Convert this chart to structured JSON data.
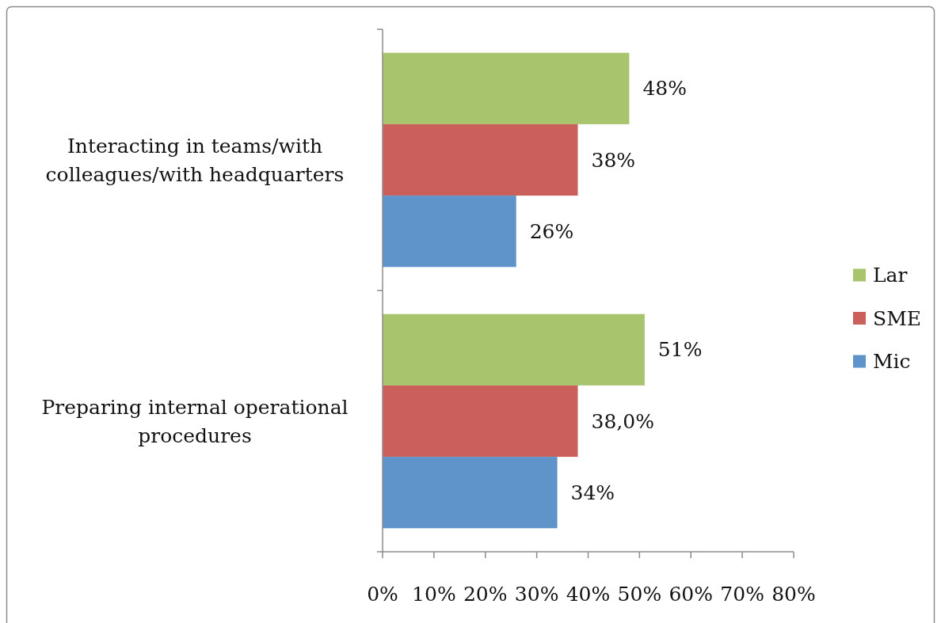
{
  "chart_data": {
    "type": "bar",
    "orientation": "horizontal",
    "categories": [
      "Interacting in teams/with colleagues/with headquarters",
      "Preparing internal operational procedures"
    ],
    "series": [
      {
        "name": "Lar",
        "color": "#a8c46c",
        "values": [
          48,
          51
        ],
        "value_labels": [
          "48%",
          "51%"
        ]
      },
      {
        "name": "SME",
        "color": "#cb5f5b",
        "values": [
          38,
          38
        ],
        "value_labels": [
          "38%",
          "38,0%"
        ]
      },
      {
        "name": "Mic",
        "color": "#5e94c9",
        "values": [
          26,
          34
        ],
        "value_labels": [
          "26%",
          "34%"
        ]
      }
    ],
    "xlim": [
      0,
      80
    ],
    "xticks": [
      {
        "value": 0,
        "label": "0%"
      },
      {
        "value": 10,
        "label": "10%"
      },
      {
        "value": 20,
        "label": "20%"
      },
      {
        "value": 30,
        "label": "30%"
      },
      {
        "value": 40,
        "label": "40%"
      },
      {
        "value": 50,
        "label": "50%"
      },
      {
        "value": 60,
        "label": "60%"
      },
      {
        "value": 70,
        "label": "70%"
      },
      {
        "value": 80,
        "label": "80%"
      }
    ],
    "legend": "right"
  }
}
